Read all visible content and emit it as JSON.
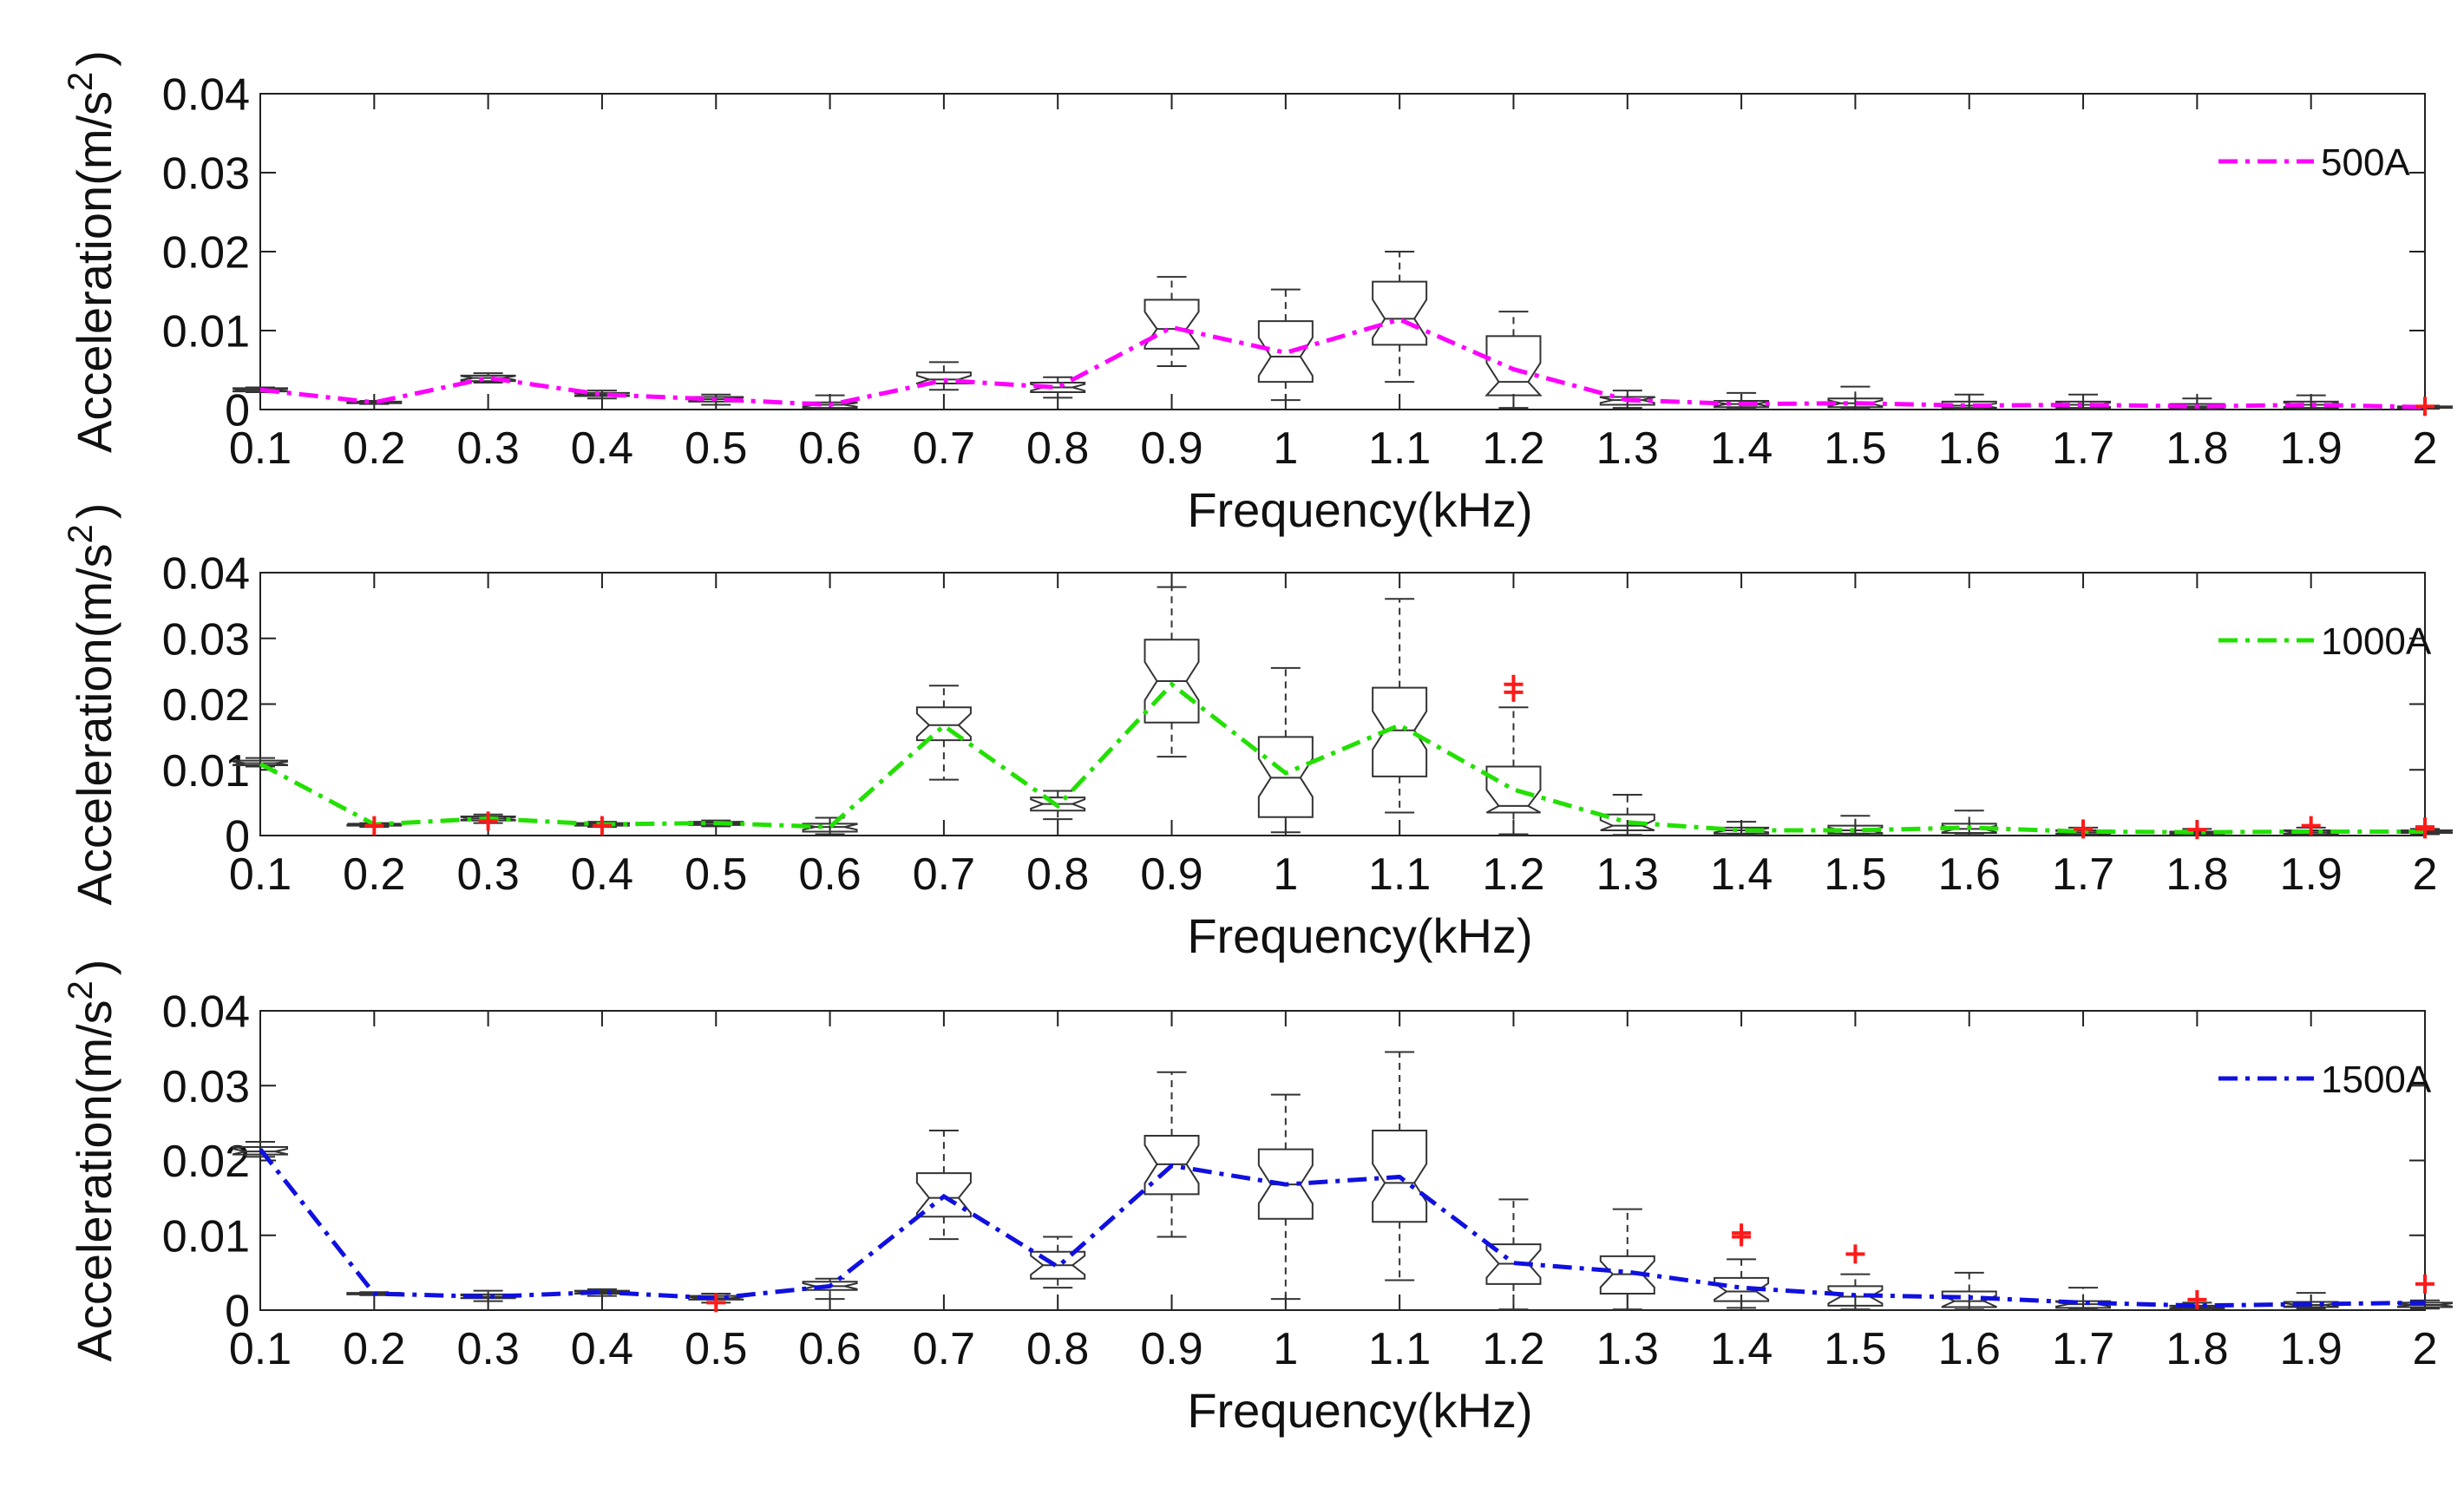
{
  "chart_data": [
    {
      "type": "box",
      "xlabel": "Frequency(kHz)",
      "ylabel": "Acceleration(m/s^2)",
      "ylabel_base": "Acceleration(m/s",
      "ylabel_exp": "2",
      "ylabel_close": ")",
      "ylim": [
        0,
        0.04
      ],
      "yticks": [
        "0",
        "0.01",
        "0.02",
        "0.03",
        "0.04"
      ],
      "categories": [
        "0.1",
        "0.2",
        "0.3",
        "0.4",
        "0.5",
        "0.6",
        "0.7",
        "0.8",
        "0.9",
        "1",
        "1.1",
        "1.2",
        "1.3",
        "1.4",
        "1.5",
        "1.6",
        "1.7",
        "1.8",
        "1.9",
        "2"
      ],
      "legend": "500A",
      "legend_position": "top-right",
      "line_color": "#ff00ff",
      "mean_line": [
        0.0025,
        0.0009,
        0.004,
        0.0019,
        0.0013,
        0.0006,
        0.0037,
        0.0028,
        0.0104,
        0.0072,
        0.0114,
        0.0051,
        0.0012,
        0.0007,
        0.0008,
        0.0005,
        0.0006,
        0.0004,
        0.0006,
        0.0003
      ],
      "boxes": [
        {
          "min": 0.0022,
          "q1": 0.0023,
          "med": 0.0025,
          "q3": 0.0027,
          "max": 0.0028
        },
        {
          "min": 0.0007,
          "q1": 0.0008,
          "med": 0.0009,
          "q3": 0.001,
          "max": 0.0011
        },
        {
          "min": 0.0034,
          "q1": 0.0036,
          "med": 0.004,
          "q3": 0.0043,
          "max": 0.0046
        },
        {
          "min": 0.0014,
          "q1": 0.0017,
          "med": 0.0019,
          "q3": 0.0021,
          "max": 0.0024
        },
        {
          "min": 0.0006,
          "q1": 0.001,
          "med": 0.0013,
          "q3": 0.0016,
          "max": 0.0019
        },
        {
          "min": 0.0001,
          "q1": 0.0002,
          "med": 0.0006,
          "q3": 0.0009,
          "max": 0.0018
        },
        {
          "min": 0.0025,
          "q1": 0.0033,
          "med": 0.0038,
          "q3": 0.0047,
          "max": 0.006
        },
        {
          "min": 0.0015,
          "q1": 0.0022,
          "med": 0.0028,
          "q3": 0.0034,
          "max": 0.0041
        },
        {
          "min": 0.0055,
          "q1": 0.0077,
          "med": 0.0102,
          "q3": 0.0139,
          "max": 0.0168
        },
        {
          "min": 0.0012,
          "q1": 0.0035,
          "med": 0.0067,
          "q3": 0.0112,
          "max": 0.0152
        },
        {
          "min": 0.0035,
          "q1": 0.0082,
          "med": 0.0115,
          "q3": 0.0162,
          "max": 0.02
        },
        {
          "min": 0.0002,
          "q1": 0.0018,
          "med": 0.0035,
          "q3": 0.0093,
          "max": 0.0124
        },
        {
          "min": 0.0002,
          "q1": 0.0006,
          "med": 0.0012,
          "q3": 0.0016,
          "max": 0.0024
        },
        {
          "min": 0.0001,
          "q1": 0.0003,
          "med": 0.0007,
          "q3": 0.0011,
          "max": 0.0021
        },
        {
          "min": 0.0001,
          "q1": 0.0003,
          "med": 0.0008,
          "q3": 0.0014,
          "max": 0.0029
        },
        {
          "min": 0.0001,
          "q1": 0.0002,
          "med": 0.0005,
          "q3": 0.001,
          "max": 0.0019
        },
        {
          "min": 0.0001,
          "q1": 0.0002,
          "med": 0.0006,
          "q3": 0.001,
          "max": 0.0019
        },
        {
          "min": 0.0001,
          "q1": 0.0002,
          "med": 0.0004,
          "q3": 0.0007,
          "max": 0.0014
        },
        {
          "min": 0.0001,
          "q1": 0.0002,
          "med": 0.0006,
          "q3": 0.001,
          "max": 0.0018
        },
        {
          "min": 0.0001,
          "q1": 0.0002,
          "med": 0.0003,
          "q3": 0.0004,
          "max": 0.0005
        }
      ],
      "outliers": [
        {
          "x": 19,
          "y": 0.0004
        }
      ]
    },
    {
      "type": "box",
      "xlabel": "Frequency(kHz)",
      "ylabel": "Acceleration(m/s^2)",
      "ylabel_base": "Acceleration(m/s",
      "ylabel_exp": "2",
      "ylabel_close": ")",
      "ylim": [
        0,
        0.04
      ],
      "yticks": [
        "0",
        "0.01",
        "0.02",
        "0.03",
        "0.04"
      ],
      "categories": [
        "0.1",
        "0.2",
        "0.3",
        "0.4",
        "0.5",
        "0.6",
        "0.7",
        "0.8",
        "0.9",
        "1",
        "1.1",
        "1.2",
        "1.3",
        "1.4",
        "1.5",
        "1.6",
        "1.7",
        "1.8",
        "1.9",
        "2"
      ],
      "legend": "1000A",
      "legend_position": "top-right",
      "line_color": "#22e000",
      "mean_line": [
        0.0109,
        0.0017,
        0.0026,
        0.0017,
        0.0019,
        0.0013,
        0.0167,
        0.0045,
        0.023,
        0.0095,
        0.0168,
        0.007,
        0.002,
        0.0008,
        0.0008,
        0.0012,
        0.0006,
        0.0005,
        0.0006,
        0.0006
      ],
      "boxes": [
        {
          "min": 0.0105,
          "q1": 0.0107,
          "med": 0.011,
          "q3": 0.0114,
          "max": 0.0118
        },
        {
          "min": 0.0013,
          "q1": 0.0015,
          "med": 0.0017,
          "q3": 0.0018,
          "max": 0.0019
        },
        {
          "min": 0.0019,
          "q1": 0.0023,
          "med": 0.0026,
          "q3": 0.0029,
          "max": 0.0032
        },
        {
          "min": 0.0013,
          "q1": 0.0015,
          "med": 0.0017,
          "q3": 0.0019,
          "max": 0.0021
        },
        {
          "min": 0.0014,
          "q1": 0.0016,
          "med": 0.0019,
          "q3": 0.0021,
          "max": 0.0023
        },
        {
          "min": 0.0002,
          "q1": 0.0006,
          "med": 0.0013,
          "q3": 0.0018,
          "max": 0.0027
        },
        {
          "min": 0.0085,
          "q1": 0.0145,
          "med": 0.0168,
          "q3": 0.0195,
          "max": 0.0228
        },
        {
          "min": 0.0025,
          "q1": 0.0038,
          "med": 0.0048,
          "q3": 0.0058,
          "max": 0.0068
        },
        {
          "min": 0.012,
          "q1": 0.0172,
          "med": 0.0235,
          "q3": 0.0298,
          "max": 0.0378
        },
        {
          "min": 0.0005,
          "q1": 0.0028,
          "med": 0.0088,
          "q3": 0.015,
          "max": 0.0255
        },
        {
          "min": 0.0035,
          "q1": 0.009,
          "med": 0.016,
          "q3": 0.0225,
          "max": 0.036
        },
        {
          "min": 0.0002,
          "q1": 0.0035,
          "med": 0.0045,
          "q3": 0.0105,
          "max": 0.0195
        },
        {
          "min": 0.0001,
          "q1": 0.0008,
          "med": 0.0015,
          "q3": 0.0032,
          "max": 0.0062
        },
        {
          "min": 0.0001,
          "q1": 0.0003,
          "med": 0.0008,
          "q3": 0.0012,
          "max": 0.0021
        },
        {
          "min": 0.0001,
          "q1": 0.0003,
          "med": 0.0008,
          "q3": 0.0015,
          "max": 0.003
        },
        {
          "min": 0.0001,
          "q1": 0.0004,
          "med": 0.001,
          "q3": 0.0018,
          "max": 0.0038
        },
        {
          "min": 0.0001,
          "q1": 0.0002,
          "med": 0.0005,
          "q3": 0.0008,
          "max": 0.0012
        },
        {
          "min": 0.0001,
          "q1": 0.0002,
          "med": 0.0004,
          "q3": 0.0006,
          "max": 0.001
        },
        {
          "min": 0.0001,
          "q1": 0.0002,
          "med": 0.0005,
          "q3": 0.0008,
          "max": 0.0012
        },
        {
          "min": 0.0002,
          "q1": 0.0004,
          "med": 0.0006,
          "q3": 0.0008,
          "max": 0.001
        }
      ],
      "outliers": [
        {
          "x": 1,
          "y": 0.0015
        },
        {
          "x": 2,
          "y": 0.0022
        },
        {
          "x": 3,
          "y": 0.0015
        },
        {
          "x": 11,
          "y": 0.023
        },
        {
          "x": 11,
          "y": 0.0218
        },
        {
          "x": 16,
          "y": 0.001
        },
        {
          "x": 17,
          "y": 0.0009
        },
        {
          "x": 18,
          "y": 0.0015
        },
        {
          "x": 19,
          "y": 0.0013
        },
        {
          "x": 19,
          "y": 0.001
        }
      ]
    },
    {
      "type": "box",
      "xlabel": "Frequency(kHz)",
      "ylabel": "Acceleration(m/s^2)",
      "ylabel_base": "Acceleration(m/s",
      "ylabel_exp": "2",
      "ylabel_close": ")",
      "ylim": [
        0,
        0.04
      ],
      "yticks": [
        "0",
        "0.01",
        "0.02",
        "0.03",
        "0.04"
      ],
      "categories": [
        "0.1",
        "0.2",
        "0.3",
        "0.4",
        "0.5",
        "0.6",
        "0.7",
        "0.8",
        "0.9",
        "1",
        "1.1",
        "1.2",
        "1.3",
        "1.4",
        "1.5",
        "1.6",
        "1.7",
        "1.8",
        "1.9",
        "2"
      ],
      "legend": "1500A",
      "legend_position": "top-right",
      "line_color": "#1010e0",
      "mean_line": [
        0.0215,
        0.0022,
        0.0018,
        0.0024,
        0.0016,
        0.0032,
        0.0152,
        0.0058,
        0.0193,
        0.0168,
        0.0178,
        0.0063,
        0.0051,
        0.003,
        0.002,
        0.0017,
        0.001,
        0.0006,
        0.0008,
        0.001
      ],
      "boxes": [
        {
          "min": 0.0205,
          "q1": 0.0208,
          "med": 0.0212,
          "q3": 0.0218,
          "max": 0.0225
        },
        {
          "min": 0.002,
          "q1": 0.0021,
          "med": 0.0022,
          "q3": 0.0023,
          "max": 0.0024
        },
        {
          "min": 0.0012,
          "q1": 0.0016,
          "med": 0.0018,
          "q3": 0.0021,
          "max": 0.0026
        },
        {
          "min": 0.0019,
          "q1": 0.0022,
          "med": 0.0024,
          "q3": 0.0026,
          "max": 0.0028
        },
        {
          "min": 0.001,
          "q1": 0.0014,
          "med": 0.0016,
          "q3": 0.0019,
          "max": 0.0022
        },
        {
          "min": 0.0015,
          "q1": 0.0027,
          "med": 0.0032,
          "q3": 0.0038,
          "max": 0.0042
        },
        {
          "min": 0.0095,
          "q1": 0.0125,
          "med": 0.015,
          "q3": 0.0183,
          "max": 0.024
        },
        {
          "min": 0.003,
          "q1": 0.0042,
          "med": 0.006,
          "q3": 0.0078,
          "max": 0.0098
        },
        {
          "min": 0.0098,
          "q1": 0.0155,
          "med": 0.0195,
          "q3": 0.0233,
          "max": 0.0318
        },
        {
          "min": 0.0015,
          "q1": 0.0122,
          "med": 0.0168,
          "q3": 0.0215,
          "max": 0.0288
        },
        {
          "min": 0.004,
          "q1": 0.0118,
          "med": 0.017,
          "q3": 0.024,
          "max": 0.0345
        },
        {
          "min": 0.0001,
          "q1": 0.0035,
          "med": 0.0062,
          "q3": 0.0088,
          "max": 0.0148
        },
        {
          "min": 0.0001,
          "q1": 0.0022,
          "med": 0.0048,
          "q3": 0.0072,
          "max": 0.0135
        },
        {
          "min": 0.0003,
          "q1": 0.0012,
          "med": 0.0025,
          "q3": 0.0043,
          "max": 0.0068
        },
        {
          "min": 0.0001,
          "q1": 0.0006,
          "med": 0.0018,
          "q3": 0.0032,
          "max": 0.0048
        },
        {
          "min": 0.0001,
          "q1": 0.0004,
          "med": 0.0012,
          "q3": 0.0025,
          "max": 0.005
        },
        {
          "min": 0.0001,
          "q1": 0.0003,
          "med": 0.0008,
          "q3": 0.0012,
          "max": 0.003
        },
        {
          "min": 0.0001,
          "q1": 0.0002,
          "med": 0.0004,
          "q3": 0.0006,
          "max": 0.001
        },
        {
          "min": 0.0002,
          "q1": 0.0004,
          "med": 0.0007,
          "q3": 0.0011,
          "max": 0.0023
        },
        {
          "min": 0.0002,
          "q1": 0.0004,
          "med": 0.0007,
          "q3": 0.001,
          "max": 0.0013
        }
      ],
      "outliers": [
        {
          "x": 4,
          "y": 0.001
        },
        {
          "x": 13,
          "y": 0.0103
        },
        {
          "x": 13,
          "y": 0.0098
        },
        {
          "x": 14,
          "y": 0.0075
        },
        {
          "x": 17,
          "y": 0.0014
        },
        {
          "x": 19,
          "y": 0.0035
        }
      ]
    }
  ]
}
